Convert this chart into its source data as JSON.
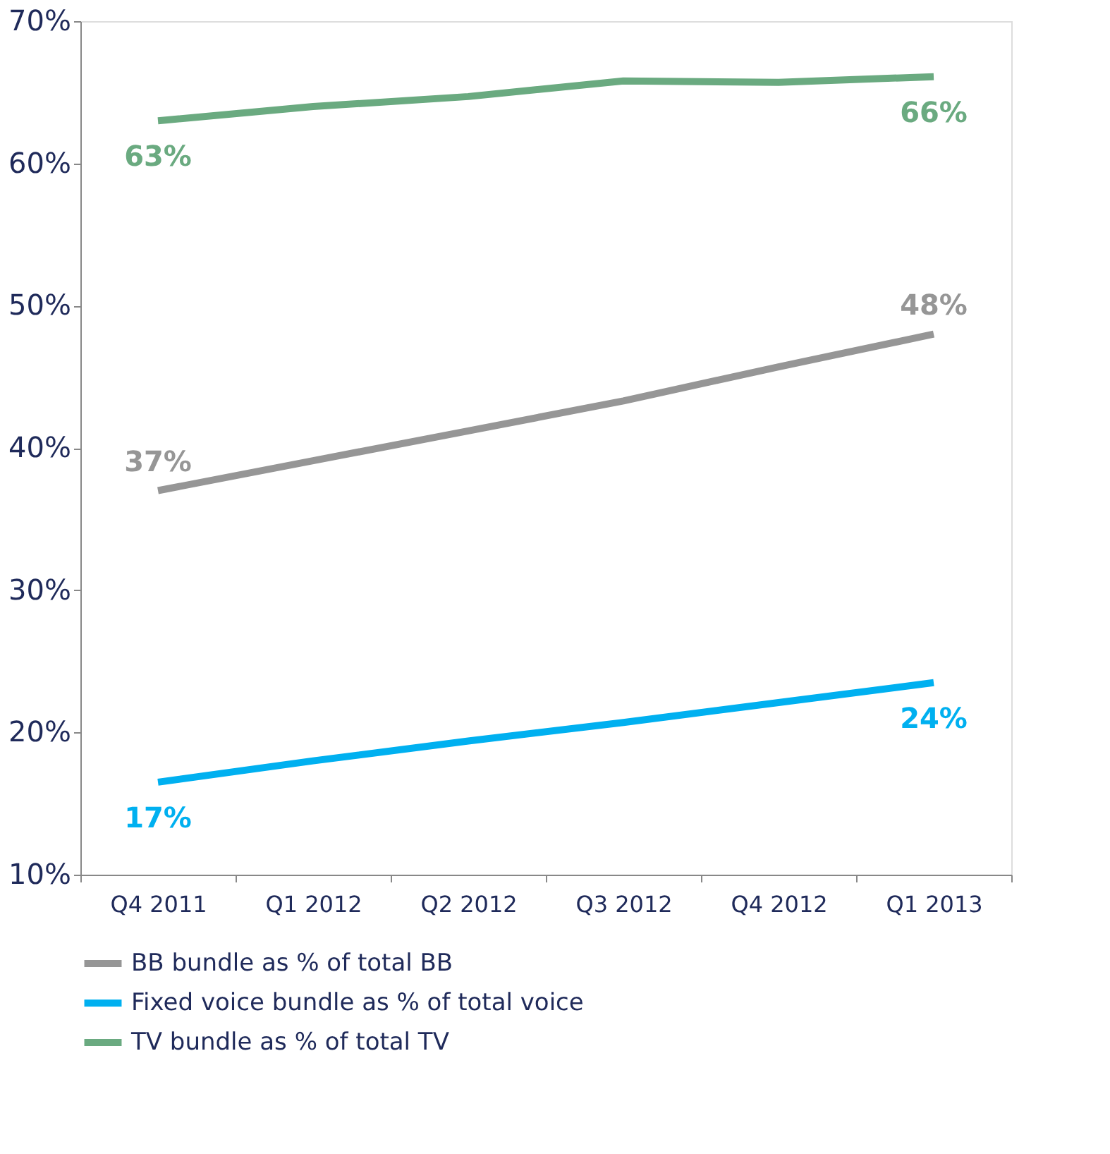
{
  "chart_data": {
    "type": "line",
    "categories": [
      "Q4 2011",
      "Q1 2012",
      "Q2 2012",
      "Q3 2012",
      "Q4 2012",
      "Q1 2013"
    ],
    "series": [
      {
        "name": "BB bundle as % of total BB",
        "color": "#969696",
        "values": [
          37,
          39.1,
          41.2,
          43.3,
          45.7,
          48
        ],
        "value_labels": [
          "37%",
          null,
          null,
          null,
          null,
          "48%"
        ]
      },
      {
        "name": "Fixed voice bundle as % of total voice",
        "color": "#00b0f0",
        "values": [
          16.5,
          18.0,
          19.4,
          20.7,
          22.1,
          23.5
        ],
        "value_labels": [
          "17%",
          null,
          null,
          null,
          null,
          "24%"
        ]
      },
      {
        "name": "TV bundle as % of total TV",
        "color": "#6aaa80",
        "values": [
          63,
          64,
          64.7,
          65.8,
          65.7,
          66.1
        ],
        "value_labels": [
          "63%",
          null,
          null,
          null,
          null,
          "66%"
        ]
      }
    ],
    "ylim": [
      10,
      70
    ],
    "yticks": [
      {
        "value": 10,
        "label": "10%"
      },
      {
        "value": 20,
        "label": "20%"
      },
      {
        "value": 30,
        "label": "30%"
      },
      {
        "value": 40,
        "label": "40%"
      },
      {
        "value": 50,
        "label": "50%"
      },
      {
        "value": 60,
        "label": "60%"
      },
      {
        "value": 70,
        "label": "70%"
      }
    ],
    "legend": "bottom",
    "grid": false,
    "marker": "none",
    "line_style": "solid"
  }
}
